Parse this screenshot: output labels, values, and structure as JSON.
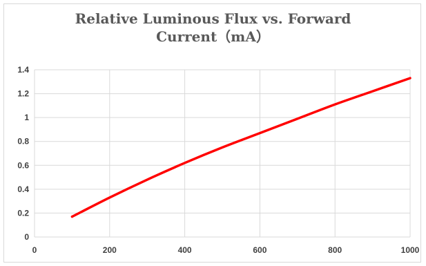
{
  "chart_data": {
    "type": "line",
    "title_line1": "Relative Luminous Flux vs. Forward",
    "title_line2": "Current（mA）",
    "xlabel": "",
    "ylabel": "",
    "xlim": [
      0,
      1000
    ],
    "ylim": [
      0,
      1.4
    ],
    "x_ticks": [
      0,
      200,
      400,
      600,
      800,
      1000
    ],
    "y_ticks": [
      0,
      0.2,
      0.4,
      0.6,
      0.8,
      1,
      1.2,
      1.4
    ],
    "y_tick_labels": [
      "0",
      "0.2",
      "0.4",
      "0.6",
      "0.8",
      "1",
      "1.2",
      "1.4"
    ],
    "grid": true,
    "legend": "none",
    "series": [
      {
        "color": "#ff0000",
        "x": [
          100,
          200,
          300,
          400,
          500,
          600,
          700,
          800,
          900,
          1000
        ],
        "y": [
          0.17,
          0.33,
          0.48,
          0.62,
          0.75,
          0.87,
          0.99,
          1.11,
          1.22,
          1.33
        ]
      }
    ]
  }
}
